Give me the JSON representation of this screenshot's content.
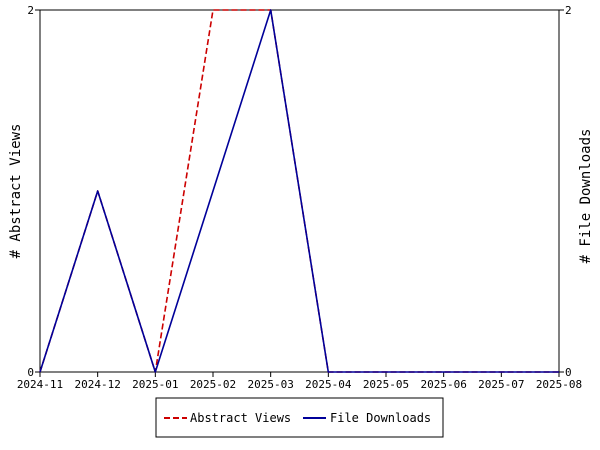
{
  "chart_data": {
    "type": "line",
    "x": [
      "2024-11",
      "2024-12",
      "2025-01",
      "2025-02",
      "2025-03",
      "2025-04",
      "2025-05",
      "2025-06",
      "2025-07",
      "2025-08"
    ],
    "ylabel_left": "# Abstract Views",
    "ylabel_right": "# File Downloads",
    "ylim": [
      0,
      2
    ],
    "yticks": [
      "0",
      "2"
    ],
    "legend_position": "bottom",
    "series": [
      {
        "name": "Abstract Views",
        "axis": "left",
        "style": "dashed",
        "color": "#cc0000",
        "points": [
          {
            "x": "2024-11",
            "y": 0
          },
          {
            "x": "2024-12",
            "y": 1
          },
          {
            "x": "2025-01",
            "y": 0
          },
          {
            "x": "2025-02",
            "y": 2
          },
          {
            "x": "2025-03",
            "y": 2
          },
          {
            "x": "2025-04",
            "y": 0
          },
          {
            "x": "2025-05",
            "y": 0
          },
          {
            "x": "2025-06",
            "y": 0
          },
          {
            "x": "2025-07",
            "y": 0
          },
          {
            "x": "2025-08",
            "y": 0
          }
        ]
      },
      {
        "name": "File Downloads",
        "axis": "right",
        "style": "solid",
        "color": "#000099",
        "points": [
          {
            "x": "2024-11",
            "y": 0
          },
          {
            "x": "2024-12",
            "y": 1
          },
          {
            "x": "2025-01",
            "y": 0
          },
          {
            "x": "2025-02",
            "y": 1
          },
          {
            "x": "2025-03",
            "y": 2
          },
          {
            "x": "2025-04",
            "y": 0
          },
          {
            "x": "2025-05",
            "y": 0
          },
          {
            "x": "2025-06",
            "y": 0
          },
          {
            "x": "2025-07",
            "y": 0
          },
          {
            "x": "2025-08",
            "y": 0
          }
        ]
      }
    ]
  }
}
